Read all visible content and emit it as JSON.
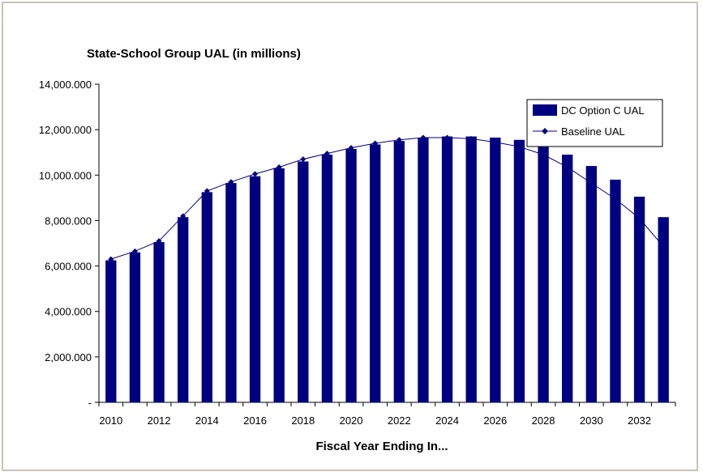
{
  "chart_data": {
    "type": "bar",
    "title": "State-School Group UAL (in millions)",
    "xlabel": "Fiscal Year Ending In...",
    "ylabel": "",
    "ylim": [
      0,
      14000
    ],
    "yticks": [
      0,
      2000,
      4000,
      6000,
      8000,
      10000,
      12000,
      14000
    ],
    "ytick_labels": [
      "-",
      "2,000.000",
      "4,000.000",
      "6,000.000",
      "8,000.000",
      "10,000.000",
      "12,000.000",
      "14,000.000"
    ],
    "categories": [
      2010,
      2011,
      2012,
      2013,
      2014,
      2015,
      2016,
      2017,
      2018,
      2019,
      2020,
      2021,
      2022,
      2023,
      2024,
      2025,
      2026,
      2027,
      2028,
      2029,
      2030,
      2031,
      2032,
      2033
    ],
    "xtick_labels": [
      "2010",
      "2012",
      "2014",
      "2016",
      "2018",
      "2020",
      "2022",
      "2024",
      "2026",
      "2028",
      "2030",
      "2032"
    ],
    "legend_position": "top-right",
    "grid": false,
    "series": [
      {
        "name": "DC Option C UAL",
        "kind": "bar",
        "color": "#000080",
        "values": [
          6250,
          6600,
          7050,
          8150,
          9250,
          9650,
          9950,
          10300,
          10600,
          10900,
          11150,
          11350,
          11500,
          11650,
          11700,
          11700,
          11650,
          11550,
          11250,
          10900,
          10400,
          9800,
          9050,
          8150
        ]
      },
      {
        "name": "Baseline UAL",
        "kind": "line",
        "color": "#000080",
        "values": [
          6300,
          6650,
          7100,
          8200,
          9300,
          9700,
          10050,
          10350,
          10700,
          10950,
          11200,
          11400,
          11550,
          11650,
          11650,
          11600,
          11450,
          11250,
          10900,
          10350,
          9650,
          8950,
          8100,
          6850
        ]
      }
    ]
  }
}
